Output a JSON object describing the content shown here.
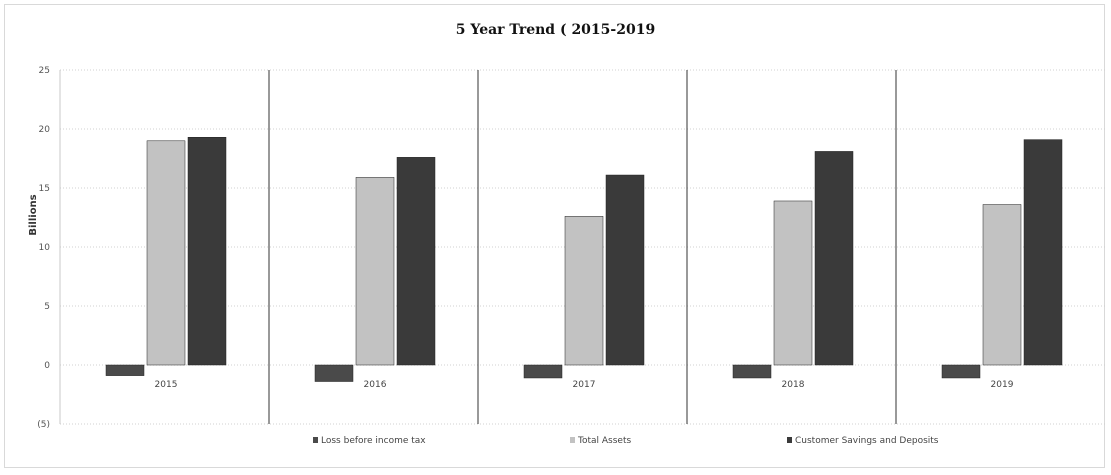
{
  "chart_data": {
    "type": "bar",
    "title": "5 Year  Trend  ( 2015-2019",
    "ylabel": "Billions",
    "xlabel": "",
    "ylim": [
      -5,
      25
    ],
    "yticks": [
      25,
      20,
      15,
      10,
      5,
      0,
      -5
    ],
    "ytick_labels": [
      "25",
      "20",
      "15",
      "10",
      "5",
      "0",
      "(5)"
    ],
    "categories": [
      "2015",
      "2016",
      "2017",
      "2018",
      "2019"
    ],
    "series": [
      {
        "name": "Loss before income tax",
        "values": [
          -0.9,
          -1.4,
          -1.1,
          -1.1,
          -1.1
        ]
      },
      {
        "name": "Total Assets",
        "values": [
          19.0,
          15.9,
          12.6,
          13.9,
          13.6
        ]
      },
      {
        "name": "Customer Savings and Deposits",
        "values": [
          19.3,
          17.6,
          16.1,
          18.1,
          19.1
        ]
      }
    ],
    "colors": [
      "#4a4a4a",
      "#c2c2c2",
      "#3a3a3a"
    ],
    "grid": true,
    "legend_position": "bottom"
  }
}
